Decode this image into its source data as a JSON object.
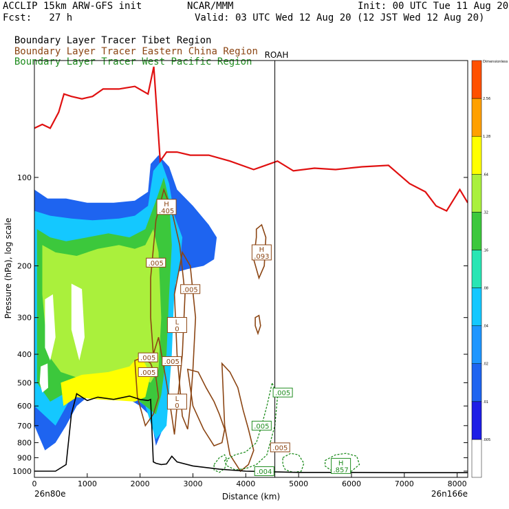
{
  "header": {
    "model": "ACCLIP 15km ARW-GFS init",
    "org": "NCAR/MMM",
    "init": "Init: 00 UTC Tue 11 Aug 20",
    "fcst": "Fcst:   27 h",
    "valid": "Valid: 03 UTC Wed 12 Aug 20 (12 JST Wed 12 Aug 20)",
    "tracers": [
      {
        "label": "Boundary Layer Tracer",
        "region": "Tibet Region",
        "color": "#000000"
      },
      {
        "label": "Boundary Layer Tracer",
        "region": "Eastern China Region",
        "color": "#8B4513"
      },
      {
        "label": "Boundary Layer Tracer",
        "region": "West Pacific Region",
        "color": "#1E8C1E"
      }
    ]
  },
  "chart_data": {
    "type": "cross-section",
    "xlabel": "Distance (km)",
    "ylabel": "Pressure (hPa), log scale",
    "x_ticks": [
      "0",
      "1000",
      "2000",
      "3000",
      "4000",
      "5000",
      "6000",
      "7000",
      "8000"
    ],
    "xlim": [
      0,
      8200
    ],
    "ylim": [
      1050,
      40
    ],
    "y_ticks": [
      100,
      200,
      300,
      400,
      500,
      600,
      700,
      800,
      900,
      1000
    ],
    "y_scale": "log",
    "left_endpoint": "26n80e",
    "right_endpoint": "26n166e",
    "marker": {
      "label": "ROAH",
      "x": 4550
    },
    "colorbar": {
      "title": "Dimensionless",
      "levels": [
        ".005",
        ".01",
        ".02",
        ".04",
        ".08",
        ".16",
        ".32",
        ".64",
        "1.28",
        "2.56"
      ],
      "colors": [
        "#ffffff",
        "#1e1ee6",
        "#1e64f0",
        "#1e96ff",
        "#14c8ff",
        "#28e6b4",
        "#3cc83c",
        "#aaf03c",
        "#ffff00",
        "#ffa000",
        "#ff5000"
      ]
    },
    "tropopause": {
      "color": "#e01010",
      "x": [
        0,
        150,
        300,
        460,
        560,
        700,
        900,
        1100,
        1300,
        1600,
        1900,
        2150,
        2260,
        2380,
        2500,
        2700,
        2950,
        3300,
        3700,
        4150,
        4600,
        4900,
        5300,
        5700,
        6200,
        6700,
        7100,
        7400,
        7600,
        7800,
        8050,
        8200
      ],
      "p": [
        68,
        66,
        68,
        60,
        52,
        53,
        54,
        53,
        50,
        50,
        49,
        52,
        42,
        88,
        82,
        82,
        84,
        84,
        88,
        94,
        88,
        95,
        93,
        94,
        92,
        91,
        105,
        112,
        125,
        130,
        110,
        122
      ]
    },
    "terrain": {
      "color": "#000000",
      "x": [
        0,
        400,
        600,
        700,
        800,
        1000,
        1200,
        1500,
        1800,
        2000,
        2150,
        2200,
        2250,
        2300,
        2400,
        2500,
        2600,
        2700,
        3000,
        3500,
        4000,
        4500,
        5000,
        6000,
        7000,
        8200
      ],
      "p": [
        1000,
        1000,
        950,
        640,
        545,
        575,
        560,
        570,
        555,
        570,
        575,
        570,
        930,
        940,
        950,
        945,
        890,
        930,
        960,
        985,
        1000,
        1005,
        1010,
        1010,
        1012,
        1012
      ]
    },
    "tibet_region_layers": [
      {
        "level": ".01",
        "x": [
          0,
          250,
          600,
          1000,
          1500,
          1900,
          2150,
          2200,
          2350,
          2550,
          2700,
          3000,
          3300,
          3450,
          3400,
          3200,
          2900,
          2700,
          2600,
          2550,
          2400,
          2300,
          2200,
          2000,
          1800,
          1500,
          1200,
          1000,
          800,
          600,
          400,
          200,
          0
        ],
        "p": [
          110,
          118,
          118,
          122,
          122,
          120,
          112,
          90,
          84,
          92,
          110,
          125,
          145,
          160,
          190,
          200,
          205,
          210,
          300,
          550,
          740,
          820,
          650,
          600,
          570,
          560,
          565,
          560,
          600,
          700,
          800,
          850,
          700
        ]
      },
      {
        "level": ".04",
        "x": [
          0,
          300,
          700,
          1100,
          1600,
          1900,
          2150,
          2250,
          2400,
          2550,
          2650,
          2800,
          2750,
          2650,
          2600,
          2500,
          2300,
          2100,
          1800,
          1500,
          1200,
          900,
          700,
          400,
          0
        ],
        "p": [
          130,
          135,
          138,
          140,
          138,
          135,
          125,
          95,
          88,
          105,
          135,
          160,
          200,
          240,
          400,
          700,
          780,
          600,
          550,
          540,
          545,
          540,
          560,
          700,
          600
        ]
      },
      {
        "level": ".16",
        "x": [
          50,
          300,
          600,
          1000,
          1400,
          1800,
          2100,
          2300,
          2450,
          2550,
          2600,
          2550,
          2500,
          2400,
          2300,
          2100,
          1800,
          1500,
          1200,
          900,
          600,
          300,
          50
        ],
        "p": [
          150,
          160,
          165,
          160,
          155,
          160,
          150,
          120,
          100,
          120,
          170,
          250,
          400,
          550,
          640,
          600,
          545,
          530,
          535,
          530,
          540,
          580,
          500
        ]
      },
      {
        "level": ".32",
        "x": [
          150,
          400,
          800,
          1200,
          1600,
          1900,
          2100,
          2250,
          2350,
          2400,
          2350,
          2200,
          2000,
          1700,
          1400,
          1100,
          800,
          500,
          250,
          150
        ],
        "p": [
          170,
          180,
          185,
          175,
          170,
          175,
          170,
          150,
          180,
          300,
          450,
          500,
          480,
          470,
          465,
          470,
          480,
          460,
          400,
          250
        ]
      },
      {
        "level": ".64",
        "x": [
          500,
          900,
          1400,
          1800,
          2000,
          2200,
          2100,
          1900,
          1600,
          1200,
          800,
          550
        ],
        "p": [
          500,
          470,
          460,
          440,
          400,
          470,
          560,
          580,
          575,
          570,
          560,
          600
        ]
      }
    ],
    "tibet_clear_gaps": [
      {
        "x": [
          200,
          350,
          400,
          300,
          200
        ],
        "p": [
          260,
          250,
          350,
          420,
          380
        ]
      },
      {
        "x": [
          700,
          900,
          950,
          850,
          700
        ],
        "p": [
          230,
          240,
          350,
          420,
          330
        ]
      },
      {
        "x": [
          120,
          250,
          260,
          150,
          100
        ],
        "p": [
          440,
          430,
          520,
          540,
          500
        ]
      }
    ],
    "china_region_contours": {
      "color": "#8B4513",
      "rings": [
        {
          "x": [
            2200,
            2300,
            2450,
            2600,
            2750,
            2850,
            2800,
            2700,
            2650,
            2600,
            2500,
            2350,
            2250,
            2200
          ],
          "p": [
            220,
            140,
            110,
            130,
            170,
            250,
            400,
            600,
            750,
            650,
            500,
            350,
            400,
            300
          ]
        },
        {
          "x": [
            2650,
            2800,
            2950,
            3050,
            3000,
            2950,
            2900,
            2800,
            2700
          ],
          "p": [
            250,
            180,
            200,
            300,
            450,
            600,
            720,
            650,
            400
          ]
        },
        {
          "x": [
            2900,
            3100,
            3250,
            3400,
            3500,
            3600,
            3550,
            3400,
            3200,
            3000
          ],
          "p": [
            450,
            460,
            520,
            580,
            640,
            720,
            800,
            820,
            720,
            600
          ]
        },
        {
          "x": [
            3550,
            3700,
            3850,
            3950,
            4050,
            4150,
            4050,
            3900,
            3700,
            3600
          ],
          "p": [
            430,
            460,
            520,
            620,
            720,
            850,
            950,
            1000,
            880,
            700
          ]
        },
        {
          "x": [
            4200,
            4300,
            4380,
            4350,
            4250,
            4150,
            4200
          ],
          "p": [
            150,
            145,
            160,
            200,
            220,
            190,
            160
          ]
        },
        {
          "x": [
            4180,
            4250,
            4280,
            4230,
            4180
          ],
          "p": [
            300,
            295,
            320,
            340,
            320
          ]
        },
        {
          "x": [
            1900,
            2050,
            2200,
            2300,
            2350,
            2250,
            2100,
            1950
          ],
          "p": [
            420,
            410,
            430,
            480,
            560,
            640,
            700,
            560
          ]
        }
      ]
    },
    "pacific_region_contours": {
      "color": "#1E8C1E",
      "rings": [
        {
          "x": [
            3600,
            3800,
            4000,
            4200,
            4300,
            4400,
            4500,
            4600,
            4550,
            4400,
            4200,
            4000,
            3800,
            3650,
            3600
          ],
          "p": [
            920,
            880,
            860,
            800,
            700,
            600,
            500,
            560,
            700,
            880,
            950,
            980,
            990,
            960,
            930
          ]
        },
        {
          "x": [
            4700,
            4850,
            5000,
            5100,
            5050,
            4900,
            4750,
            4700
          ],
          "p": [
            900,
            870,
            880,
            940,
            1000,
            1010,
            990,
            950
          ]
        },
        {
          "x": [
            5500,
            5700,
            5900,
            6100,
            6150,
            6000,
            5800,
            5600,
            5500
          ],
          "p": [
            920,
            880,
            870,
            890,
            950,
            1000,
            1010,
            990,
            960
          ]
        },
        {
          "x": [
            3400,
            3500,
            3600,
            3650,
            3600,
            3500,
            3400
          ],
          "p": [
            950,
            900,
            880,
            920,
            980,
            1010,
            990
          ]
        }
      ]
    },
    "annotations": [
      {
        "kind": "H",
        "value": ".405",
        "x": 2500,
        "p": 126,
        "color": "#8B4513"
      },
      {
        "kind": "H",
        "value": ".093",
        "x": 4300,
        "p": 180,
        "color": "#8B4513"
      },
      {
        "kind": "value",
        "value": ".005",
        "x": 2300,
        "p": 195,
        "color": "#8B4513"
      },
      {
        "kind": "value",
        "value": ".005",
        "x": 2950,
        "p": 240,
        "color": "#8B4513"
      },
      {
        "kind": "L",
        "value": "0",
        "x": 2700,
        "p": 318,
        "color": "#8B4513"
      },
      {
        "kind": "value",
        "value": ".005",
        "x": 2150,
        "p": 410,
        "color": "#8B4513"
      },
      {
        "kind": "value",
        "value": ".005",
        "x": 2150,
        "p": 460,
        "color": "#8B4513"
      },
      {
        "kind": "value",
        "value": ".005",
        "x": 2600,
        "p": 422,
        "color": "#8B4513"
      },
      {
        "kind": "L",
        "value": "0",
        "x": 2700,
        "p": 580,
        "color": "#8B4513"
      },
      {
        "kind": "value",
        "value": ".005",
        "x": 4700,
        "p": 540,
        "color": "#1E8C1E"
      },
      {
        "kind": "value",
        "value": ".005",
        "x": 4300,
        "p": 700,
        "color": "#1E8C1E"
      },
      {
        "kind": "value",
        "value": ".005",
        "x": 4650,
        "p": 830,
        "color": "#8B4513"
      },
      {
        "kind": "value",
        "value": ".004",
        "x": 4350,
        "p": 1000,
        "color": "#1E8C1E"
      },
      {
        "kind": "H",
        "value": ".857",
        "x": 5800,
        "p": 960,
        "color": "#1E8C1E"
      }
    ]
  }
}
